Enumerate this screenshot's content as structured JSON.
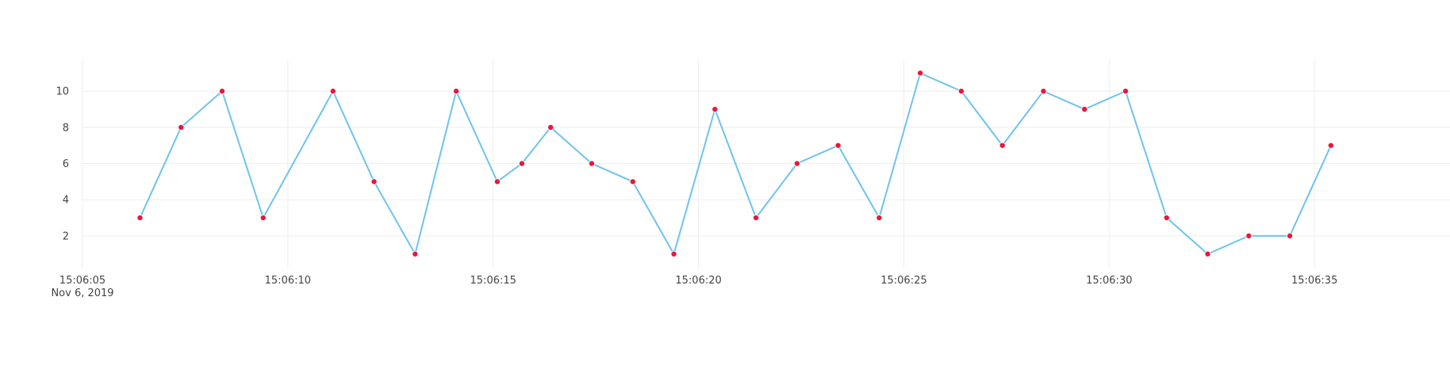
{
  "chart_data": {
    "type": "line",
    "title": "",
    "xlabel": "",
    "ylabel": "",
    "x_axis_type": "time",
    "xlim": [
      "2019-11-06 15:06:05",
      "2019-11-06 15:06:38.3"
    ],
    "ylim": [
      0.2,
      11.8
    ],
    "grid": true,
    "legend": "none",
    "y_ticks": [
      2,
      4,
      6,
      8,
      10
    ],
    "x_ticks": [
      {
        "time": "2019-11-06 15:06:05",
        "label": "15:06:05",
        "sublabel": "Nov 6, 2019"
      },
      {
        "time": "2019-11-06 15:06:10",
        "label": "15:06:10",
        "sublabel": ""
      },
      {
        "time": "2019-11-06 15:06:15",
        "label": "15:06:15",
        "sublabel": ""
      },
      {
        "time": "2019-11-06 15:06:20",
        "label": "15:06:20",
        "sublabel": ""
      },
      {
        "time": "2019-11-06 15:06:25",
        "label": "15:06:25",
        "sublabel": ""
      },
      {
        "time": "2019-11-06 15:06:30",
        "label": "15:06:30",
        "sublabel": ""
      },
      {
        "time": "2019-11-06 15:06:35",
        "label": "15:06:35",
        "sublabel": ""
      }
    ],
    "series": [
      {
        "line_color": "#6ec3ef",
        "marker_color": "#e8173c",
        "x": [
          "2019-11-06 15:06:06.4",
          "2019-11-06 15:06:07.4",
          "2019-11-06 15:06:08.4",
          "2019-11-06 15:06:09.4",
          "2019-11-06 15:06:11.1",
          "2019-11-06 15:06:12.1",
          "2019-11-06 15:06:13.1",
          "2019-11-06 15:06:14.1",
          "2019-11-06 15:06:15.1",
          "2019-11-06 15:06:15.7",
          "2019-11-06 15:06:16.4",
          "2019-11-06 15:06:17.4",
          "2019-11-06 15:06:18.4",
          "2019-11-06 15:06:19.4",
          "2019-11-06 15:06:20.4",
          "2019-11-06 15:06:21.4",
          "2019-11-06 15:06:22.4",
          "2019-11-06 15:06:23.4",
          "2019-11-06 15:06:24.4",
          "2019-11-06 15:06:25.4",
          "2019-11-06 15:06:26.4",
          "2019-11-06 15:06:27.4",
          "2019-11-06 15:06:28.4",
          "2019-11-06 15:06:29.4",
          "2019-11-06 15:06:30.4",
          "2019-11-06 15:06:31.4",
          "2019-11-06 15:06:32.4",
          "2019-11-06 15:06:33.4",
          "2019-11-06 15:06:34.4",
          "2019-11-06 15:06:35.4"
        ],
        "y": [
          3,
          8,
          10,
          3,
          10,
          5,
          1,
          10,
          5,
          6,
          8,
          6,
          5,
          1,
          9,
          3,
          6,
          7,
          3,
          11,
          10,
          7,
          10,
          9,
          10,
          3,
          1,
          2,
          2,
          7
        ]
      }
    ]
  }
}
